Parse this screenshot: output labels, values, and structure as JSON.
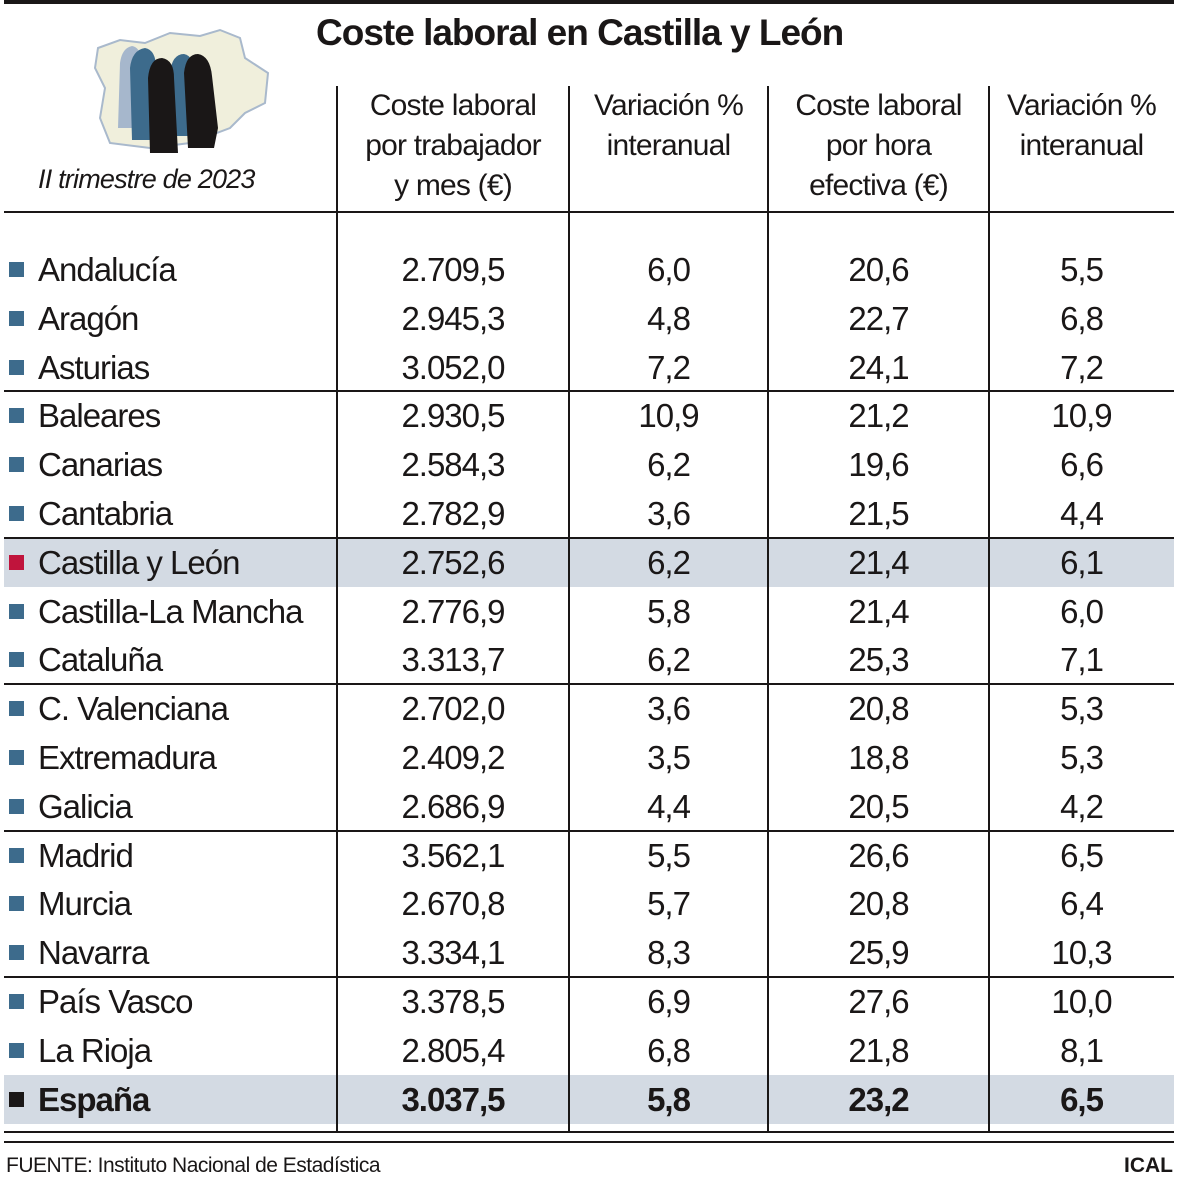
{
  "title": "Coste laboral en Castilla y León",
  "period": "II trimestre de 2023",
  "source": "FUENTE: Instituto Nacional de Estadística",
  "brand": "ICAL",
  "colors": {
    "marker": "#3d6b8c",
    "highlight_marker": "#c0143c",
    "total_marker": "#1a1717",
    "highlight_bg": "#d3dae3"
  },
  "chart_data": {
    "type": "table",
    "title": "Coste laboral en Castilla y León",
    "columns": [
      {
        "label": [
          "Coste laboral",
          "por trabajador",
          "y mes (€)"
        ]
      },
      {
        "label": [
          "Variación %",
          "interanual"
        ]
      },
      {
        "label": [
          "Coste laboral",
          "por hora",
          "efectiva (€)"
        ]
      },
      {
        "label": [
          "Variación %",
          "interanual"
        ]
      }
    ],
    "rows": [
      {
        "region": "Andalucía",
        "values": [
          "2.709,5",
          "6,0",
          "20,6",
          "5,5"
        ]
      },
      {
        "region": "Aragón",
        "values": [
          "2.945,3",
          "4,8",
          "22,7",
          "6,8"
        ]
      },
      {
        "region": "Asturias",
        "values": [
          "3.052,0",
          "7,2",
          "24,1",
          "7,2"
        ]
      },
      {
        "region": "Baleares",
        "values": [
          "2.930,5",
          "10,9",
          "21,2",
          "10,9"
        ]
      },
      {
        "region": "Canarias",
        "values": [
          "2.584,3",
          "6,2",
          "19,6",
          "6,6"
        ]
      },
      {
        "region": "Cantabria",
        "values": [
          "2.782,9",
          "3,6",
          "21,5",
          "4,4"
        ]
      },
      {
        "region": "Castilla y León",
        "values": [
          "2.752,6",
          "6,2",
          "21,4",
          "6,1"
        ],
        "highlight": true
      },
      {
        "region": "Castilla-La Mancha",
        "values": [
          "2.776,9",
          "5,8",
          "21,4",
          "6,0"
        ]
      },
      {
        "region": "Cataluña",
        "values": [
          "3.313,7",
          "6,2",
          "25,3",
          "7,1"
        ]
      },
      {
        "region": "C. Valenciana",
        "values": [
          "2.702,0",
          "3,6",
          "20,8",
          "5,3"
        ]
      },
      {
        "region": "Extremadura",
        "values": [
          "2.409,2",
          "3,5",
          "18,8",
          "5,3"
        ]
      },
      {
        "region": "Galicia",
        "values": [
          "2.686,9",
          "4,4",
          "20,5",
          "4,2"
        ]
      },
      {
        "region": "Madrid",
        "values": [
          "3.562,1",
          "5,5",
          "26,6",
          "6,5"
        ]
      },
      {
        "region": "Murcia",
        "values": [
          "2.670,8",
          "5,7",
          "20,8",
          "6,4"
        ]
      },
      {
        "region": "Navarra",
        "values": [
          "3.334,1",
          "8,3",
          "25,9",
          "10,3"
        ]
      },
      {
        "region": "País Vasco",
        "values": [
          "3.378,5",
          "6,9",
          "27,6",
          "10,0"
        ]
      },
      {
        "region": "La Rioja",
        "values": [
          "2.805,4",
          "6,8",
          "21,8",
          "8,1"
        ]
      },
      {
        "region": "España",
        "values": [
          "3.037,5",
          "5,8",
          "23,2",
          "6,5"
        ],
        "total": true
      }
    ]
  }
}
